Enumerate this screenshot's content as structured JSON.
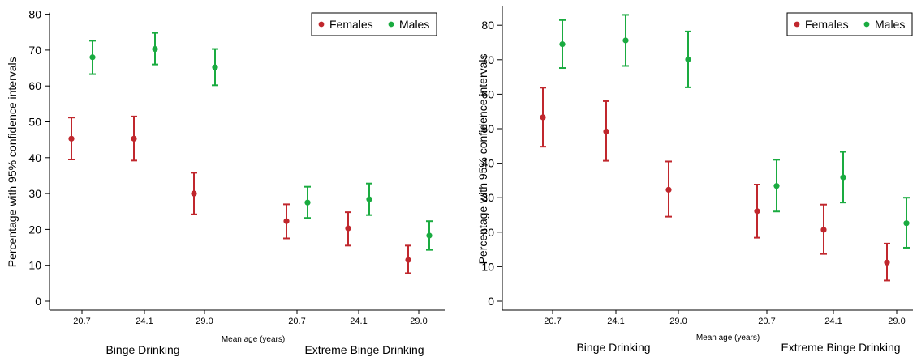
{
  "colors": {
    "females": "#c0272d",
    "males": "#1aab40"
  },
  "chart_data": [
    {
      "type": "scatter",
      "subtype": "error-bar",
      "ylabel": "Percentage with 95% confidence intervals",
      "xlabel": "Mean age (years)",
      "ylim": [
        0,
        80
      ],
      "yticks": [
        0,
        10,
        20,
        30,
        40,
        50,
        60,
        70,
        80
      ],
      "grid": false,
      "legend_position": "top-right",
      "groups": [
        "Binge Drinking",
        "Extreme Binge Drinking"
      ],
      "categories": [
        "20.7",
        "24.1",
        "29.0",
        "20.7",
        "24.1",
        "29.0"
      ],
      "series": [
        {
          "name": "Females",
          "values": [
            45.3,
            45.3,
            30.0,
            22.3,
            20.3,
            11.5
          ],
          "lower": [
            39.5,
            39.2,
            24.2,
            17.5,
            15.5,
            7.8
          ],
          "upper": [
            51.2,
            51.5,
            35.8,
            27.0,
            24.8,
            15.5
          ]
        },
        {
          "name": "Males",
          "values": [
            68.0,
            70.3,
            65.2,
            27.5,
            28.4,
            18.3
          ],
          "lower": [
            63.3,
            66.0,
            60.2,
            23.2,
            24.0,
            14.3
          ],
          "upper": [
            72.6,
            74.8,
            70.3,
            31.9,
            32.8,
            22.3
          ]
        }
      ]
    },
    {
      "type": "scatter",
      "subtype": "error-bar",
      "ylabel": "Percentage with 95% confidence intervals",
      "xlabel": "Mean age (years)",
      "ylim": [
        0,
        85
      ],
      "yticks": [
        0,
        10,
        20,
        30,
        40,
        50,
        60,
        70,
        80
      ],
      "grid": false,
      "legend_position": "top-right",
      "groups": [
        "Binge Drinking",
        "Extreme Binge Drinking"
      ],
      "categories": [
        "20.7",
        "24.1",
        "29.0",
        "20.7",
        "24.1",
        "29.0"
      ],
      "series": [
        {
          "name": "Females",
          "values": [
            53.3,
            49.2,
            32.3,
            26.1,
            20.7,
            11.2
          ],
          "lower": [
            44.8,
            40.7,
            24.5,
            18.4,
            13.7,
            6.0
          ],
          "upper": [
            61.9,
            58.0,
            40.5,
            33.8,
            28.0,
            16.7
          ]
        },
        {
          "name": "Males",
          "values": [
            74.5,
            75.6,
            70.1,
            33.4,
            35.9,
            22.6
          ],
          "lower": [
            67.6,
            68.2,
            62.0,
            26.0,
            28.6,
            15.5
          ],
          "upper": [
            81.5,
            83.0,
            78.2,
            41.0,
            43.3,
            30.0
          ]
        }
      ]
    }
  ]
}
